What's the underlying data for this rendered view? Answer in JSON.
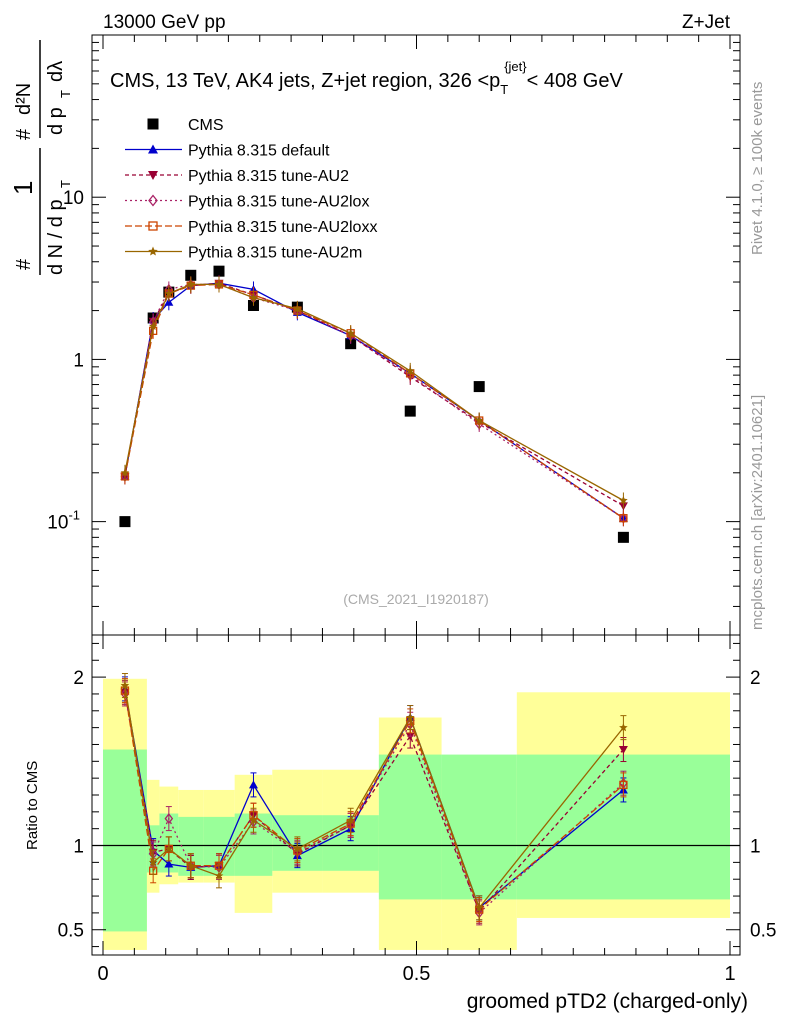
{
  "header": {
    "left": "13000 GeV pp",
    "right": "Z+Jet"
  },
  "side": {
    "rivet": "Rivet 4.1.0, ≥ 100k events",
    "mcplots": "mcplots.cern.ch [arXiv:2401.10621]"
  },
  "chart_data": {
    "type": "scatter",
    "title": "CMS, 13 TeV, AK4 jets, Z+jet region, 326 <p_T^{jet}< 408 GeV",
    "title_parts": {
      "main": "CMS, 13 TeV, AK4 jets, Z+jet region, 326 <p",
      "sub": "T",
      "sup": "{jet}",
      "tail": "< 408 GeV"
    },
    "watermark": "(CMS_2021_I1920187)",
    "xlabel": "groomed pTD2 (charged-only)",
    "ylabel_main": "1/N dN/dp_T d²N/dp_T dλ",
    "ylabel_ratio": "Ratio to CMS",
    "xlim": [
      0,
      1
    ],
    "ylim": [
      0.02,
      100
    ],
    "yscale": "log",
    "ratio_ylim": [
      0.35,
      2.25
    ],
    "x_ticks": [
      "0",
      "0.5",
      "1"
    ],
    "y_ticks": [
      "10",
      "1",
      "10^{-1}"
    ],
    "ratio_ticks": [
      "2",
      "1",
      "0.5"
    ],
    "bin_edges": [
      0,
      0.07,
      0.09,
      0.12,
      0.16,
      0.21,
      0.27,
      0.35,
      0.44,
      0.54,
      0.66,
      1.0
    ],
    "x": [
      0.035,
      0.08,
      0.105,
      0.14,
      0.185,
      0.24,
      0.31,
      0.395,
      0.49,
      0.6,
      0.83
    ],
    "series": [
      {
        "name": "CMS",
        "color": "#000000",
        "marker": "square",
        "dash": "",
        "values": [
          0.1,
          1.8,
          2.6,
          3.3,
          3.5,
          2.15,
          2.1,
          1.25,
          0.48,
          0.68,
          0.08
        ]
      },
      {
        "name": "Pythia 8.315 default",
        "color": "#0000cc",
        "marker": "triangle-up",
        "dash": "",
        "values": [
          0.19,
          1.75,
          2.25,
          2.85,
          2.95,
          2.7,
          1.95,
          1.4,
          0.82,
          0.42,
          0.105
        ],
        "ratio": [
          1.93,
          0.97,
          0.89,
          0.87,
          0.88,
          1.36,
          0.94,
          1.1,
          1.76,
          0.63,
          1.33
        ]
      },
      {
        "name": "Pythia 8.315 tune-AU2",
        "color": "#990033",
        "marker": "triangle-down",
        "dash": "4,3",
        "values": [
          0.19,
          1.72,
          2.55,
          2.85,
          2.95,
          2.5,
          2.0,
          1.4,
          0.78,
          0.41,
          0.125
        ],
        "ratio": [
          1.91,
          0.96,
          0.98,
          0.87,
          0.88,
          1.18,
          0.95,
          1.12,
          1.65,
          0.61,
          1.57
        ]
      },
      {
        "name": "Pythia 8.315 tune-AU2lox",
        "color": "#aa2266",
        "marker": "diamond-open",
        "dash": "2,3",
        "values": [
          0.19,
          1.7,
          2.7,
          2.9,
          2.9,
          2.4,
          2.0,
          1.4,
          0.8,
          0.4,
          0.105
        ],
        "ratio": [
          1.9,
          0.95,
          1.16,
          0.88,
          0.87,
          1.14,
          0.96,
          1.12,
          1.72,
          0.6,
          1.37
        ]
      },
      {
        "name": "Pythia 8.315 tune-AU2loxx",
        "color": "#cc4400",
        "marker": "square-open",
        "dash": "7,3",
        "values": [
          0.19,
          1.5,
          2.55,
          2.85,
          2.9,
          2.5,
          2.0,
          1.45,
          0.82,
          0.42,
          0.105
        ],
        "ratio": [
          1.92,
          0.85,
          0.98,
          0.88,
          0.88,
          1.18,
          0.97,
          1.13,
          1.74,
          0.62,
          1.36
        ]
      },
      {
        "name": "Pythia 8.315 tune-AU2m",
        "color": "#996600",
        "marker": "star",
        "dash": "",
        "values": [
          0.2,
          1.6,
          2.55,
          2.9,
          2.9,
          2.4,
          2.05,
          1.45,
          0.85,
          0.42,
          0.135
        ],
        "ratio": [
          1.95,
          0.9,
          0.98,
          0.88,
          0.82,
          1.15,
          0.98,
          1.15,
          1.76,
          0.63,
          1.7
        ]
      }
    ],
    "ratio_bands": {
      "green_lo": [
        0.49,
        0.84,
        0.84,
        0.82,
        0.82,
        0.82,
        0.85,
        0.85,
        0.68,
        0.68,
        0.68
      ],
      "green_hi": [
        1.57,
        1.12,
        1.19,
        1.17,
        1.17,
        1.19,
        1.18,
        1.18,
        1.54,
        1.54,
        1.54
      ],
      "yellow_lo": [
        0.38,
        0.72,
        0.77,
        0.78,
        0.78,
        0.6,
        0.72,
        0.72,
        0.38,
        0.38,
        0.57
      ],
      "yellow_hi": [
        1.99,
        1.39,
        1.35,
        1.33,
        1.33,
        1.42,
        1.45,
        1.45,
        1.76,
        1.46,
        1.91
      ]
    }
  }
}
